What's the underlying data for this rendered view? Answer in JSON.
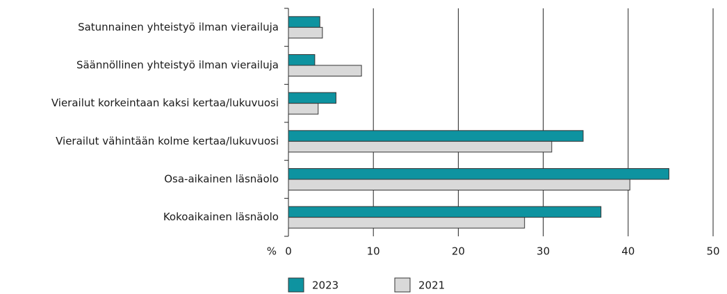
{
  "chart_data": {
    "type": "barh",
    "categories": [
      "Satunnainen yhteistyö ilman vierailuja",
      "Säännöllinen yhteistyö ilman vierailuja",
      "Vierailut korkeintaan kaksi kertaa/lukuvuosi",
      "Vierailut vähintään kolme kertaa/lukuvuosi",
      "Osa-aikainen läsnäolo",
      "Kokoaikainen läsnäolo"
    ],
    "series": [
      {
        "name": "2023",
        "color": "#0e93a0",
        "values": [
          3.7,
          3.1,
          5.6,
          34.7,
          44.8,
          36.8
        ]
      },
      {
        "name": "2021",
        "color": "#d9d9d9",
        "values": [
          4.0,
          8.6,
          3.5,
          31.0,
          40.2,
          27.8
        ]
      }
    ],
    "x_label": "%",
    "xlim": [
      0,
      50
    ],
    "xticks": [
      0,
      10,
      20,
      30,
      40,
      50
    ],
    "grid": true,
    "legend": "bottom"
  }
}
